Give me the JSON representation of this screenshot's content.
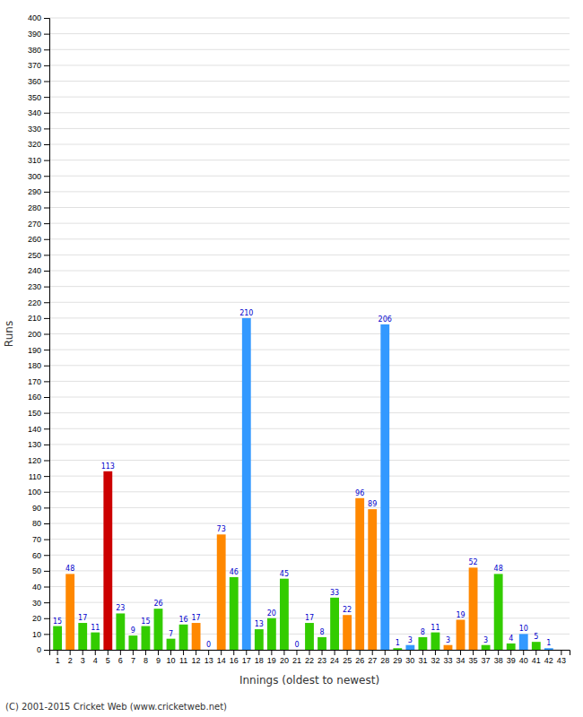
{
  "chart_data": {
    "type": "bar",
    "categories": [
      "1",
      "2",
      "3",
      "4",
      "5",
      "6",
      "7",
      "8",
      "9",
      "10",
      "11",
      "12",
      "13",
      "14",
      "16",
      "17",
      "18",
      "19",
      "20",
      "21",
      "22",
      "23",
      "24",
      "25",
      "26",
      "27",
      "28",
      "29",
      "30",
      "31",
      "32",
      "33",
      "34",
      "35",
      "37",
      "38",
      "39",
      "40",
      "41",
      "42",
      "43"
    ],
    "values": [
      15,
      48,
      17,
      11,
      113,
      23,
      9,
      15,
      26,
      7,
      16,
      17,
      0,
      73,
      46,
      210,
      13,
      20,
      45,
      0,
      17,
      8,
      33,
      22,
      96,
      89,
      206,
      1,
      3,
      8,
      11,
      3,
      19,
      52,
      3,
      48,
      4,
      10,
      5,
      1,
      0
    ],
    "colors": [
      "#33cc00",
      "#ff8800",
      "#33cc00",
      "#33cc00",
      "#cc0000",
      "#33cc00",
      "#33cc00",
      "#33cc00",
      "#33cc00",
      "#33cc00",
      "#33cc00",
      "#ff8800",
      "#ff8800",
      "#ff8800",
      "#33cc00",
      "#3399ff",
      "#33cc00",
      "#33cc00",
      "#33cc00",
      "#ff8800",
      "#33cc00",
      "#33cc00",
      "#33cc00",
      "#ff8800",
      "#ff8800",
      "#ff8800",
      "#3399ff",
      "#33cc00",
      "#3399ff",
      "#33cc00",
      "#33cc00",
      "#ff8800",
      "#ff8800",
      "#ff8800",
      "#33cc00",
      "#33cc00",
      "#33cc00",
      "#3399ff",
      "#33cc00",
      "#3399ff",
      "#33cc00"
    ],
    "data_labels": true,
    "value_labels": [
      "15",
      "48",
      "17",
      "11",
      "113",
      "23",
      "9",
      "15",
      "26",
      "7",
      "16",
      "17",
      "0",
      "73",
      "46",
      "210",
      "13",
      "20",
      "45",
      "0",
      "17",
      "8",
      "33",
      "22",
      "96",
      "89",
      "206",
      "1",
      "3",
      "8",
      "11",
      "3",
      "19",
      "52",
      "3",
      "48",
      "4",
      "10",
      "5",
      "1",
      null
    ],
    "xlabel": "Innings (oldest to newest)",
    "ylabel": "Runs",
    "ylim": [
      0,
      400
    ],
    "yticks": [
      0,
      10,
      20,
      30,
      40,
      50,
      60,
      70,
      80,
      90,
      100,
      110,
      120,
      130,
      140,
      150,
      160,
      170,
      180,
      190,
      200,
      210,
      220,
      230,
      240,
      250,
      260,
      270,
      280,
      290,
      300,
      310,
      320,
      330,
      340,
      350,
      360,
      370,
      380,
      390,
      400
    ],
    "grid": true,
    "annotations": [
      "(C) 2001-2015 Cricket Web (www.cricketweb.net)"
    ]
  }
}
